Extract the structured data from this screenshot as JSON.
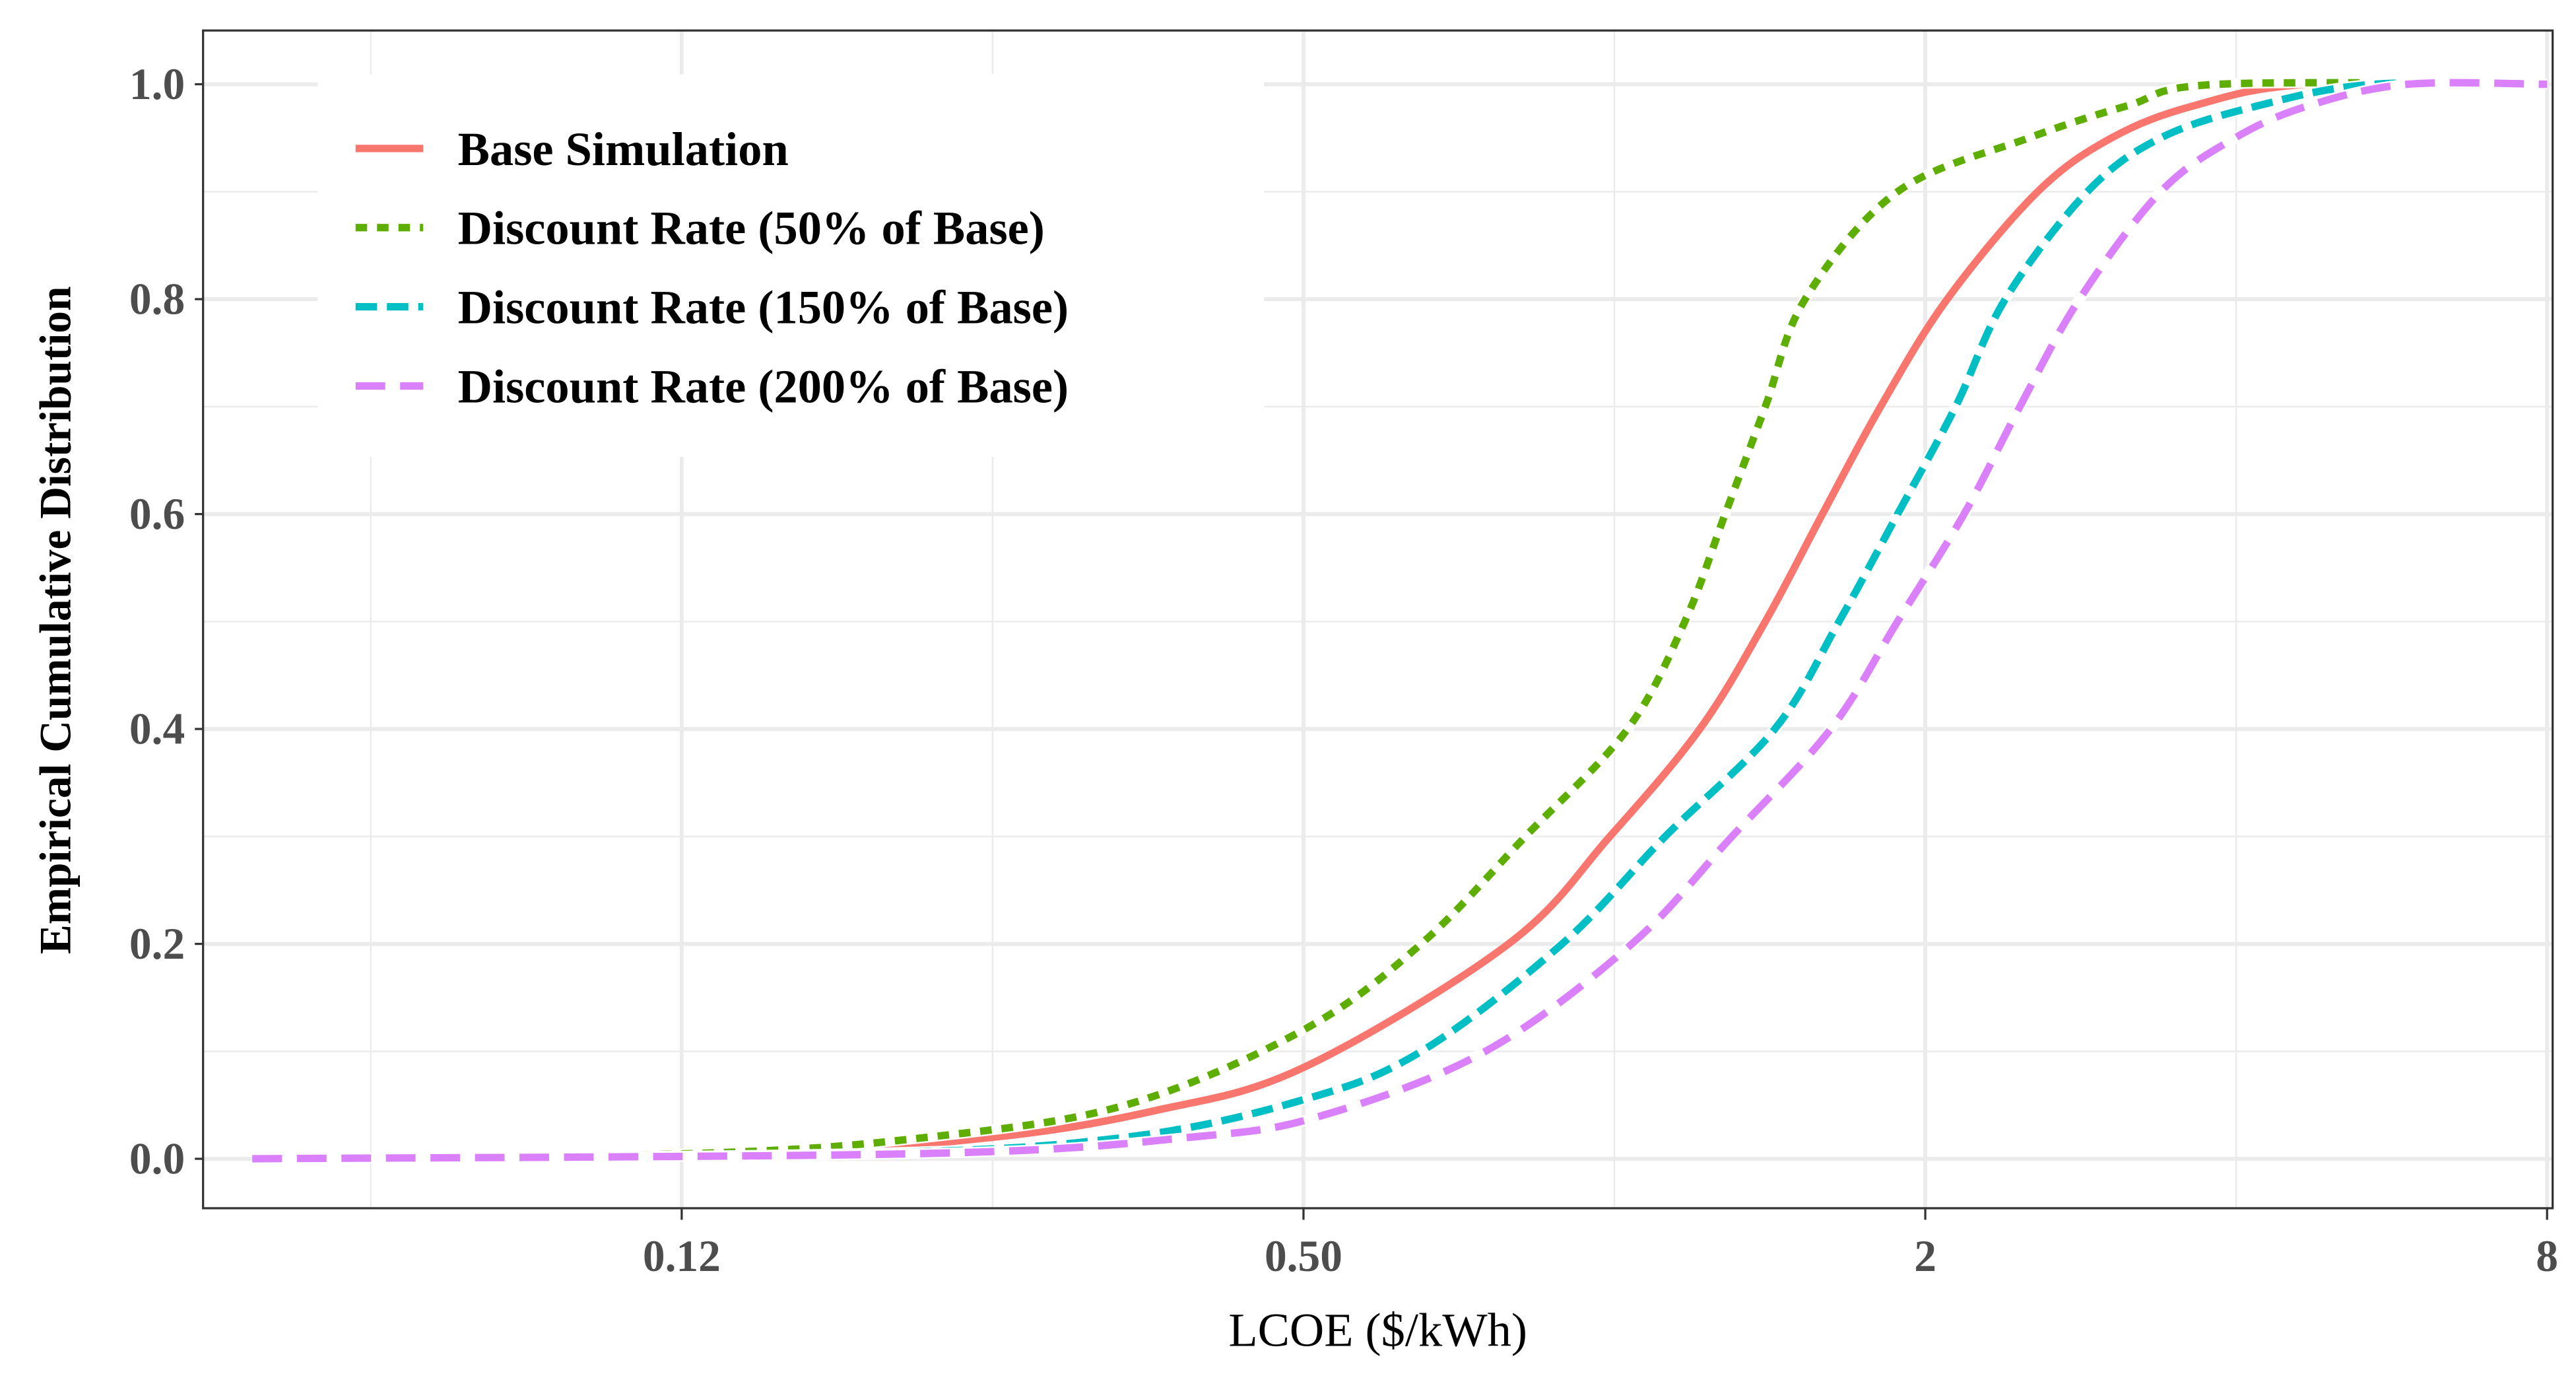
{
  "chart_data": {
    "type": "line",
    "title": "",
    "xlabel": "LCOE ($/kWh)",
    "ylabel": "Empirical Cumulative Distribution",
    "x_scale": "log2",
    "xlim": [
      0.043,
      8.1
    ],
    "ylim": [
      -0.046,
      1.05
    ],
    "x_ticks": [
      0.125,
      0.5,
      2,
      8
    ],
    "x_tick_labels": [
      "0.12",
      "0.50",
      "2",
      "8"
    ],
    "y_ticks": [
      0,
      0.2,
      0.4,
      0.6,
      0.8,
      1.0
    ],
    "y_tick_labels": [
      "0.0",
      "0.2",
      "0.4",
      "0.6",
      "0.8",
      "1.0"
    ],
    "grid": true,
    "legend_position": "top-left",
    "series": [
      {
        "name": "Base Simulation",
        "color": "#F8766D",
        "linetype": "solid",
        "x": [
          0.048,
          0.145,
          0.25,
          0.36,
          0.5,
          0.79,
          0.99,
          1.21,
          1.4,
          1.59,
          1.81,
          2.1,
          2.57,
          3.03,
          3.64,
          4.7,
          8
        ],
        "y": [
          0,
          0.005,
          0.02,
          0.045,
          0.085,
          0.2,
          0.3,
          0.4,
          0.5,
          0.6,
          0.7,
          0.8,
          0.9,
          0.95,
          0.98,
          1,
          1
        ]
      },
      {
        "name": "Discount Rate (50% of Base)",
        "color": "#5DAE00",
        "linetype": "dotted",
        "x": [
          0.048,
          0.129,
          0.216,
          0.336,
          0.5,
          0.65,
          0.82,
          1.03,
          1.17,
          1.28,
          1.4,
          1.53,
          1.88,
          2.52,
          3.14,
          3.84,
          8
        ],
        "y": [
          0,
          0.005,
          0.02,
          0.05,
          0.12,
          0.2,
          0.3,
          0.4,
          0.5,
          0.6,
          0.7,
          0.8,
          0.9,
          0.95,
          0.98,
          1,
          1
        ]
      },
      {
        "name": "Discount Rate (150% of Base)",
        "color": "#00BFC4",
        "linetype": "dashed",
        "x": [
          0.048,
          0.186,
          0.336,
          0.5,
          0.65,
          0.89,
          1.12,
          1.43,
          1.65,
          1.88,
          2.14,
          2.39,
          2.87,
          3.38,
          4.2,
          5.43,
          8
        ],
        "y": [
          0,
          0.005,
          0.02,
          0.055,
          0.1,
          0.2,
          0.3,
          0.4,
          0.5,
          0.6,
          0.7,
          0.8,
          0.9,
          0.95,
          0.98,
          1,
          1
        ]
      },
      {
        "name": "Discount Rate (200% of Base)",
        "color": "#DA80FA",
        "linetype": "longdash",
        "x": [
          0.048,
          0.216,
          0.388,
          0.52,
          0.75,
          1.04,
          1.3,
          1.62,
          1.88,
          2.18,
          2.47,
          2.82,
          3.38,
          3.99,
          4.7,
          5.86,
          8
        ],
        "y": [
          0,
          0.005,
          0.02,
          0.04,
          0.1,
          0.2,
          0.3,
          0.4,
          0.5,
          0.6,
          0.7,
          0.8,
          0.9,
          0.95,
          0.98,
          1,
          1
        ]
      }
    ]
  }
}
